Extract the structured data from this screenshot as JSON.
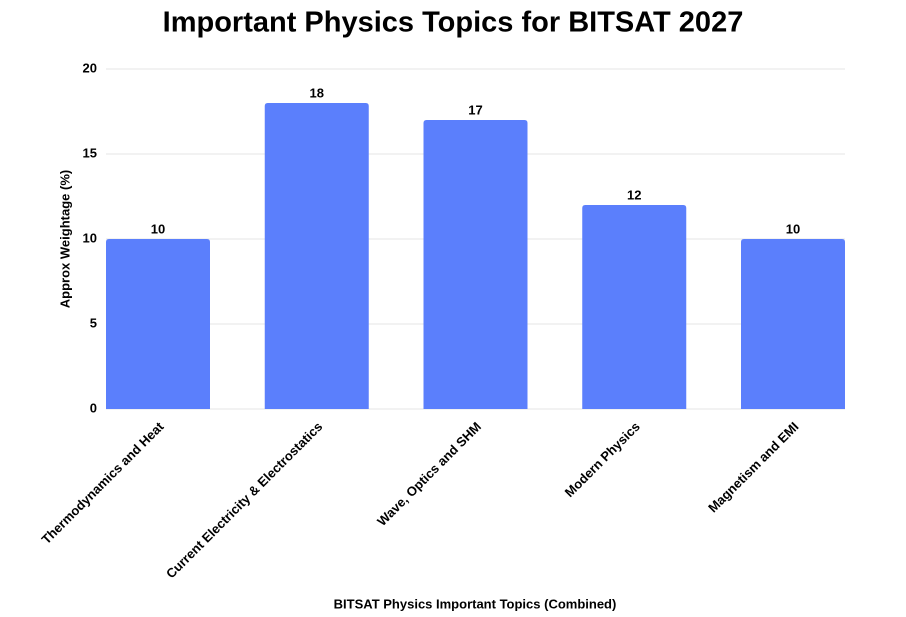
{
  "chart_data": {
    "type": "bar",
    "title": "Important Physics Topics for BITSAT 2027",
    "x_label": "BITSAT Physics Important Topics (Combined)",
    "y_label": "Approx Weightage (%)",
    "categories": [
      "Thermodynamics and Heat",
      "Current Electricity & Electrostatics",
      "Wave, Optics and SHM",
      "Modern Physics",
      "Magnetism and EMI"
    ],
    "values": [
      10,
      18,
      17,
      12,
      10
    ],
    "color": "#5b7ffc",
    "ylim": [
      0,
      20
    ],
    "yticks": [
      0,
      5,
      10,
      15,
      20
    ],
    "grid": true
  }
}
